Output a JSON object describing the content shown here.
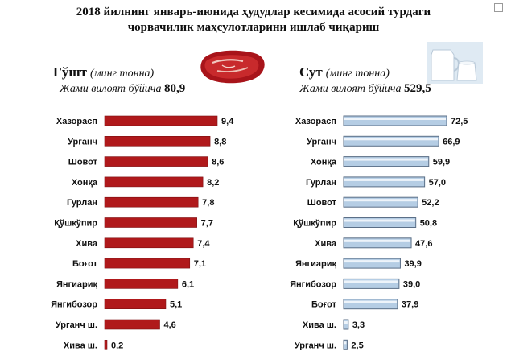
{
  "header": {
    "title_line1": "2018 йилнинг январь-июнида ҳудудлар кесимида асосий турдаги",
    "title_line2": "чорвачилик маҳсулотларини ишлаб чиқариш"
  },
  "meat": {
    "name": "Гўшт",
    "unit": "(минг тонна)",
    "subtitle": "Жами вилоят бўйича",
    "total": "80,9"
  },
  "milk": {
    "name": "Сут",
    "unit": "(минг тонна)",
    "subtitle": "Жами вилоят бўйича",
    "total": "529,5"
  },
  "colors": {
    "meat_bar": "#b0191b",
    "milk_bar": "#b5cde4",
    "milk_bar_edge": "#5b6f87"
  },
  "chart_data": [
    {
      "type": "bar",
      "orientation": "horizontal",
      "title": "Гўшт (минг тонна)",
      "categories": [
        "Хазорасп",
        "Урганч",
        "Шовот",
        "Хонқа",
        "Гурлан",
        "Қўшкўпир",
        "Хива",
        "Боғот",
        "Янгиариқ",
        "Янгибозор",
        "Урганч ш.",
        "Хива ш."
      ],
      "values": [
        9.4,
        8.8,
        8.6,
        8.2,
        7.8,
        7.7,
        7.4,
        7.1,
        6.1,
        5.1,
        4.6,
        0.2
      ],
      "labels": [
        "9,4",
        "8,8",
        "8,6",
        "8,2",
        "7,8",
        "7,7",
        "7,4",
        "7,1",
        "6,1",
        "5,1",
        "4,6",
        "0,2"
      ],
      "xlim": [
        0,
        9.4
      ],
      "grid": false,
      "legend": "none"
    },
    {
      "type": "bar",
      "orientation": "horizontal",
      "title": "Сут (минг тонна)",
      "categories": [
        "Хазорасп",
        "Урганч",
        "Хонқа",
        "Гурлан",
        "Шовот",
        "Қўшкўпир",
        "Хива",
        "Янгиариқ",
        "Янгибозор",
        "Боғот",
        "Хива ш.",
        "Урганч ш."
      ],
      "values": [
        72.5,
        66.9,
        59.9,
        57.0,
        52.2,
        50.8,
        47.6,
        39.9,
        39.0,
        37.9,
        3.3,
        2.5
      ],
      "labels": [
        "72,5",
        "66,9",
        "59,9",
        "57,0",
        "52,2",
        "50,8",
        "47,6",
        "39,9",
        "39,0",
        "37,9",
        "3,3",
        "2,5"
      ],
      "xlim": [
        0,
        72.5
      ],
      "grid": false,
      "legend": "none"
    }
  ]
}
